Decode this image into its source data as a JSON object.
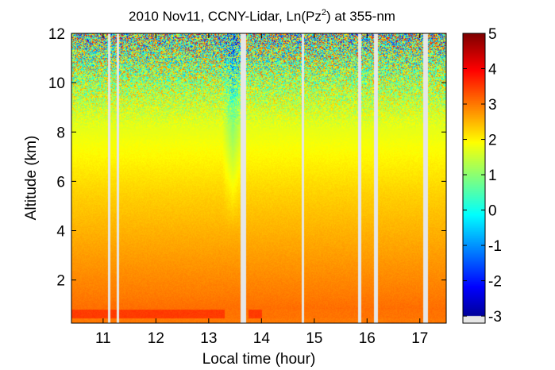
{
  "chart_data": {
    "type": "heatmap",
    "title": "2010 Nov11, CCNY-Lidar, Ln(Pz",
    "title_sup": "2",
    "title_tail": ") at 355-nm",
    "xlabel": "Local time (hour)",
    "ylabel": "Altitude (km)",
    "xlim": [
      10.4,
      17.5
    ],
    "ylim": [
      0.25,
      12
    ],
    "x_ticks": [
      "11",
      "12",
      "13",
      "14",
      "15",
      "16",
      "17"
    ],
    "x_tick_values": [
      11,
      12,
      13,
      14,
      15,
      16,
      17
    ],
    "y_ticks": [
      "2",
      "4",
      "6",
      "8",
      "10",
      "12"
    ],
    "y_tick_values": [
      2,
      4,
      6,
      8,
      10,
      12
    ],
    "colorbar": {
      "range": [
        -3.2,
        5
      ],
      "tick_labels": [
        "5",
        "4",
        "3",
        "2",
        "1",
        "0",
        "-1",
        "-2",
        "-3"
      ],
      "tick_values": [
        5,
        4,
        3,
        2,
        1,
        0,
        -1,
        -2,
        -3
      ]
    },
    "data_gaps_hours": [
      [
        11.08,
        11.13
      ],
      [
        11.25,
        11.3
      ],
      [
        13.6,
        13.7
      ],
      [
        14.75,
        14.8
      ],
      [
        15.82,
        15.88
      ],
      [
        16.12,
        16.2
      ],
      [
        17.05,
        17.15
      ]
    ],
    "grid": false,
    "colormap": "jet",
    "gap_color": "#e6e6e6"
  }
}
